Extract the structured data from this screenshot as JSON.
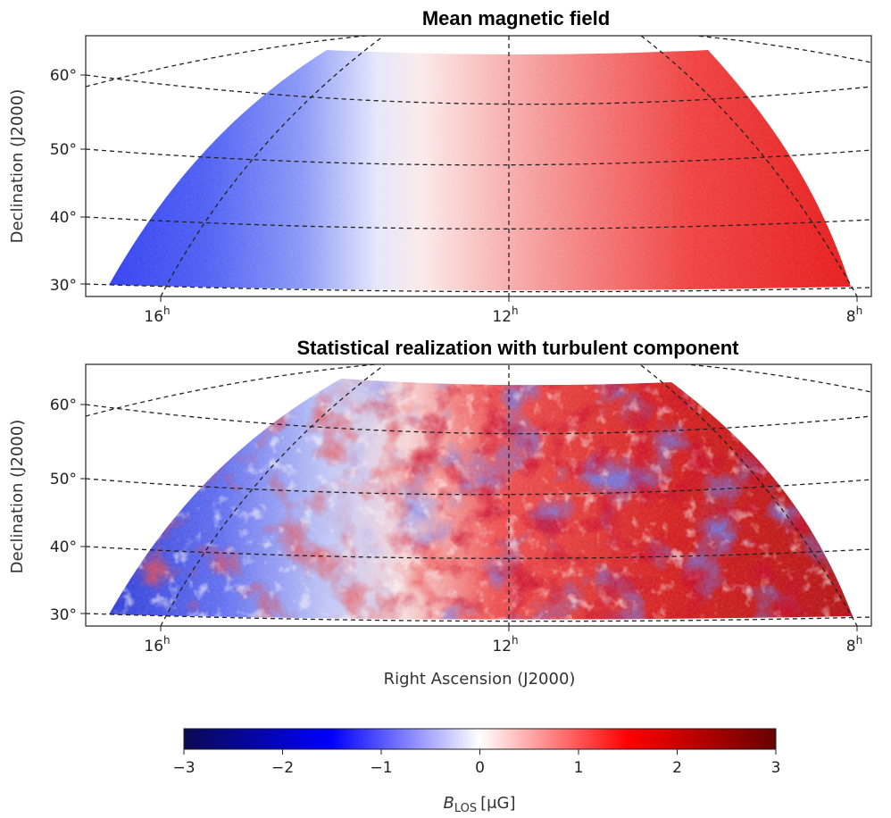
{
  "chart_data": [
    {
      "type": "heatmap",
      "title": "Mean magnetic field",
      "xlabel": "",
      "ylabel": "Declination (J2000)",
      "x_ticks": [
        {
          "value": 16,
          "label": "16",
          "sup": "h"
        },
        {
          "value": 12,
          "label": "12",
          "sup": "h"
        },
        {
          "value": 8,
          "label": "8",
          "sup": "h"
        }
      ],
      "y_ticks": [
        {
          "value": 60,
          "label": "60°"
        },
        {
          "value": 50,
          "label": "50°"
        },
        {
          "value": 40,
          "label": "40°"
        },
        {
          "value": 30,
          "label": "30°"
        }
      ],
      "ra_range_hours": [
        16.2,
        8.2
      ],
      "dec_range_deg": [
        30,
        64
      ],
      "grid": true,
      "field": "smooth gradient from about -1.3 at RA 16h (blue, east) through 0 near RA 13.5h to about +1.8 at RA 8h (red, west)"
    },
    {
      "type": "heatmap",
      "title": "Statistical realization with turbulent component",
      "xlabel": "Right Ascension (J2000)",
      "ylabel": "Declination (J2000)",
      "x_ticks": [
        {
          "value": 16,
          "label": "16",
          "sup": "h"
        },
        {
          "value": 12,
          "label": "12",
          "sup": "h"
        },
        {
          "value": 8,
          "label": "8",
          "sup": "h"
        }
      ],
      "y_ticks": [
        {
          "value": 60,
          "label": "60°"
        },
        {
          "value": 50,
          "label": "50°"
        },
        {
          "value": 40,
          "label": "40°"
        },
        {
          "value": 30,
          "label": "30°"
        }
      ],
      "ra_range_hours": [
        16.2,
        8.2
      ],
      "dec_range_deg": [
        30,
        64
      ],
      "grid": true,
      "field": "mean field plus turbulent fluctuations of roughly ±1 µG; values span about -2.5 to +2.8"
    }
  ],
  "colorbar": {
    "label": "B",
    "label_sub": "LOS",
    "label_unit": "[μG]",
    "min": -3,
    "max": 3,
    "tick_labels": [
      "−3",
      "−2",
      "−1",
      "0",
      "1",
      "2",
      "3"
    ],
    "colors": [
      "#0a0a52",
      "#0000ff",
      "#ffffff",
      "#ff0000",
      "#670000"
    ]
  }
}
